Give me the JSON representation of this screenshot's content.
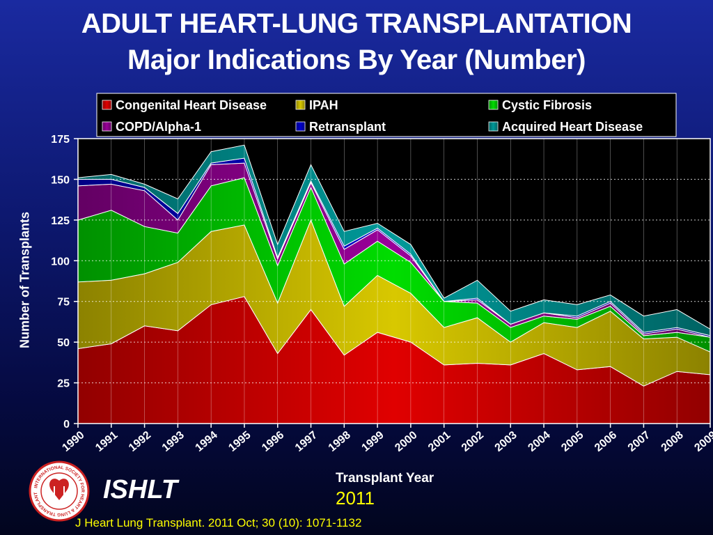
{
  "header": {
    "title": "ADULT HEART-LUNG TRANSPLANTATION",
    "subtitle": "Major Indications By Year (Number)"
  },
  "footer": {
    "year": "2011",
    "citation": "J Heart Lung Transplant. 2011 Oct; 30 (10): 1071-1132",
    "logo_text": "ISHLT",
    "seal_text": "INTERNATIONAL SOCIETY FOR HEART & LUNG TRANSPLANTATION"
  },
  "chart_data": {
    "type": "area",
    "stacked": true,
    "x": [
      "1990",
      "1991",
      "1992",
      "1993",
      "1994",
      "1995",
      "1996",
      "1997",
      "1998",
      "1999",
      "2000",
      "2001",
      "2002",
      "2003",
      "2004",
      "2005",
      "2006",
      "2007",
      "2008",
      "2009"
    ],
    "xlabel": "Transplant Year",
    "ylabel": "Number of Transplants",
    "ylim": [
      0,
      175
    ],
    "yticks": [
      0,
      25,
      50,
      75,
      100,
      125,
      150,
      175
    ],
    "grid": true,
    "legend_position": "top",
    "series": [
      {
        "name": "Congenital Heart Disease",
        "color": "#e00000",
        "values": [
          46,
          49,
          60,
          57,
          73,
          78,
          43,
          70,
          42,
          56,
          50,
          36,
          37,
          36,
          43,
          33,
          35,
          23,
          32,
          30
        ]
      },
      {
        "name": "IPAH",
        "color": "#d8c800",
        "values": [
          41,
          39,
          32,
          42,
          45,
          44,
          31,
          55,
          30,
          35,
          30,
          23,
          28,
          14,
          19,
          26,
          34,
          29,
          21,
          14
        ]
      },
      {
        "name": "Cystic Fibrosis",
        "color": "#00dd00",
        "values": [
          38,
          43,
          29,
          18,
          28,
          29,
          23,
          20,
          26,
          21,
          19,
          16,
          9,
          9,
          4,
          5,
          3,
          2,
          3,
          9
        ]
      },
      {
        "name": "COPD/Alpha-1",
        "color": "#990099",
        "values": [
          21,
          16,
          22,
          8,
          13,
          9,
          4,
          3,
          9,
          7,
          4,
          0,
          2,
          2,
          2,
          1,
          2,
          1,
          2,
          0
        ]
      },
      {
        "name": "Retransplant",
        "color": "#0000cc",
        "values": [
          4,
          3,
          2,
          4,
          1,
          3,
          1,
          1,
          2,
          1,
          1,
          0,
          1,
          0,
          0,
          1,
          1,
          1,
          1,
          1
        ]
      },
      {
        "name": "Acquired Heart Disease",
        "color": "#009999",
        "values": [
          1,
          3,
          2,
          9,
          7,
          8,
          8,
          10,
          9,
          3,
          6,
          2,
          11,
          8,
          8,
          7,
          4,
          10,
          11,
          4
        ]
      }
    ]
  }
}
